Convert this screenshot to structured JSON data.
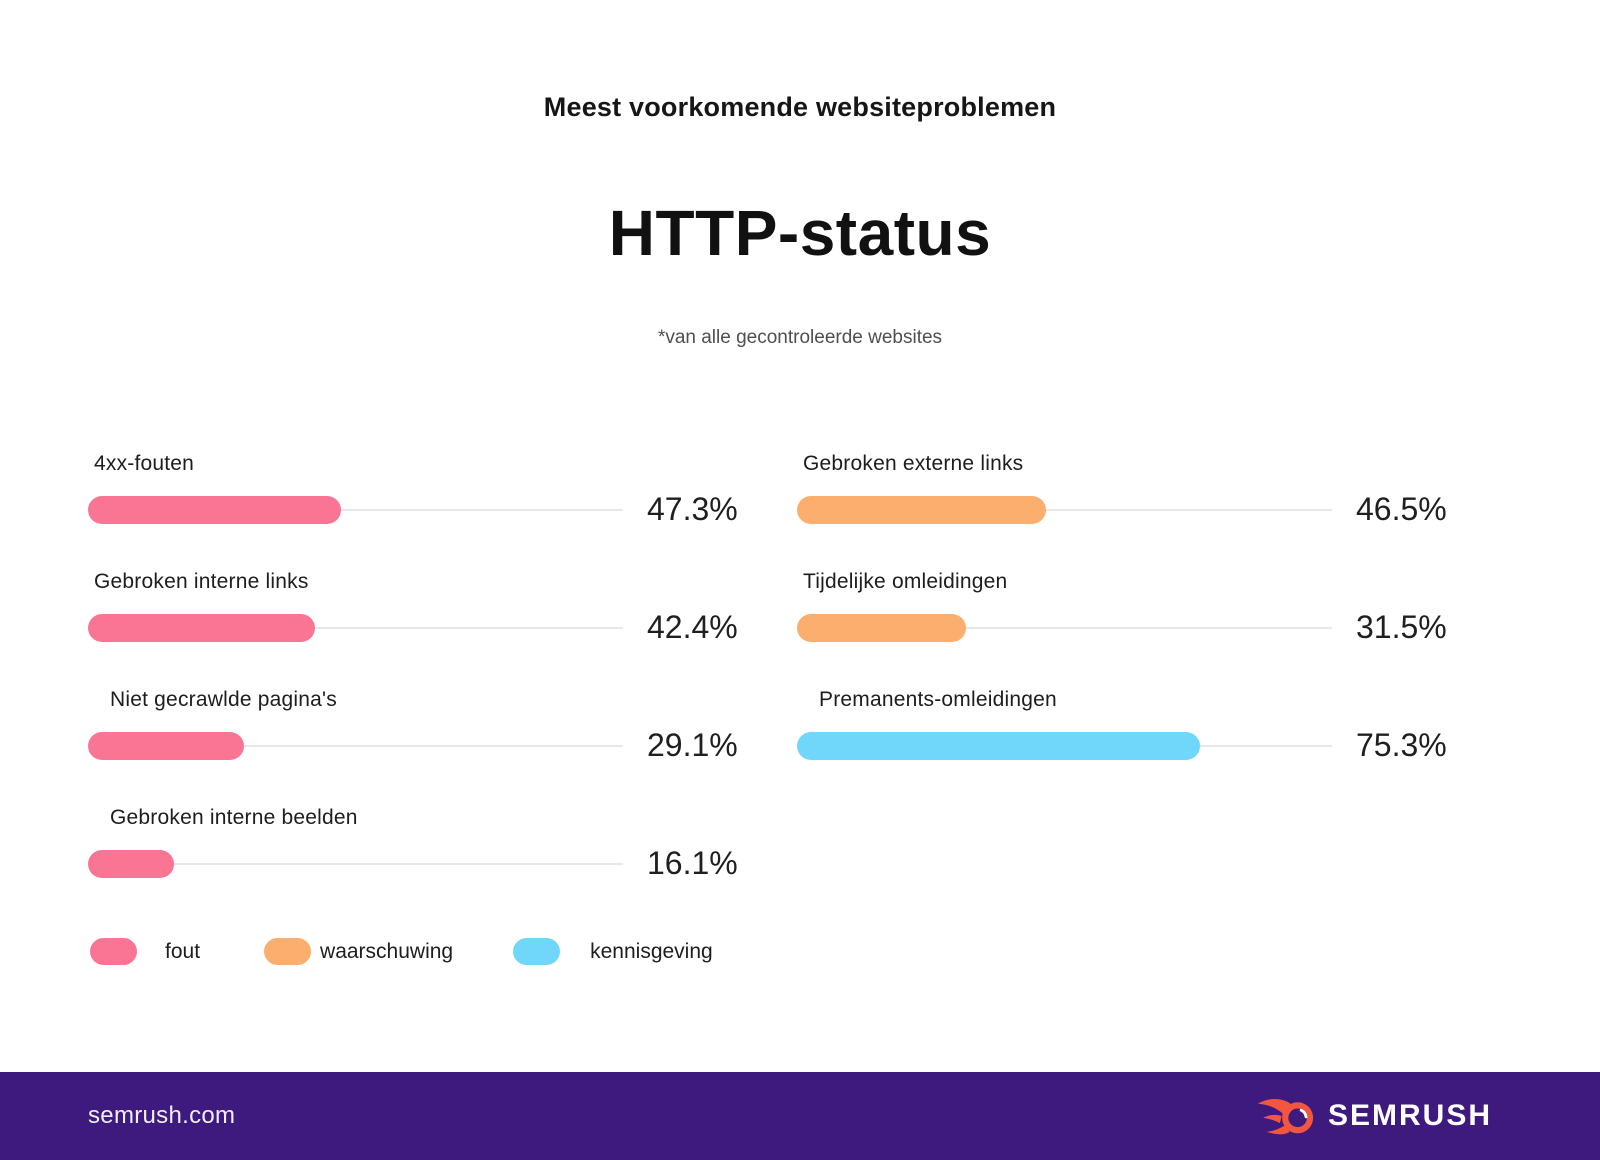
{
  "header": {
    "eyebrow": "Meest voorkomende websiteproblemen",
    "title": "HTTP-status",
    "subtitle": "*van alle gecontroleerde websites"
  },
  "chart_data": {
    "type": "bar",
    "orientation": "horizontal",
    "unit": "percent",
    "value_range": [
      0,
      100
    ],
    "grid": false,
    "legend_position": "bottom-left",
    "columns": {
      "left": {
        "items": [
          {
            "label": "4xx-fouten",
            "value": 47.3,
            "display": "47.3%",
            "category": "fout",
            "color": "#fa7593"
          },
          {
            "label": "Gebroken interne links",
            "value": 42.4,
            "display": "42.4%",
            "category": "fout",
            "color": "#fa7593"
          },
          {
            "label": "Niet gecrawlde pagina's",
            "value": 29.1,
            "display": "29.1%",
            "category": "fout",
            "color": "#fa7593"
          },
          {
            "label": "Gebroken interne beelden",
            "value": 16.1,
            "display": "16.1%",
            "category": "fout",
            "color": "#fa7593"
          }
        ]
      },
      "right": {
        "items": [
          {
            "label": "Gebroken externe links",
            "value": 46.5,
            "display": "46.5%",
            "category": "waarschuwing",
            "color": "#fcae6e"
          },
          {
            "label": "Tijdelijke omleidingen",
            "value": 31.5,
            "display": "31.5%",
            "category": "waarschuwing",
            "color": "#fcae6e"
          },
          {
            "label": "Premanents-omleidingen",
            "value": 75.3,
            "display": "75.3%",
            "category": "kennisgeving",
            "color": "#70d7fa"
          }
        ]
      }
    },
    "legend": [
      {
        "label": "fout",
        "color": "#fa7593"
      },
      {
        "label": "waarschuwing",
        "color": "#fcae6e"
      },
      {
        "label": "kennisgeving",
        "color": "#70d7fa"
      }
    ]
  },
  "colors": {
    "background": "#ffffff",
    "track": "#e8e8e8",
    "footer_purple": "#3e1a7e",
    "brand_coral": "#f2563f",
    "text_dark": "#1b1b1b"
  },
  "footer": {
    "site": "semrush.com",
    "brand": "SEMRUSH"
  }
}
